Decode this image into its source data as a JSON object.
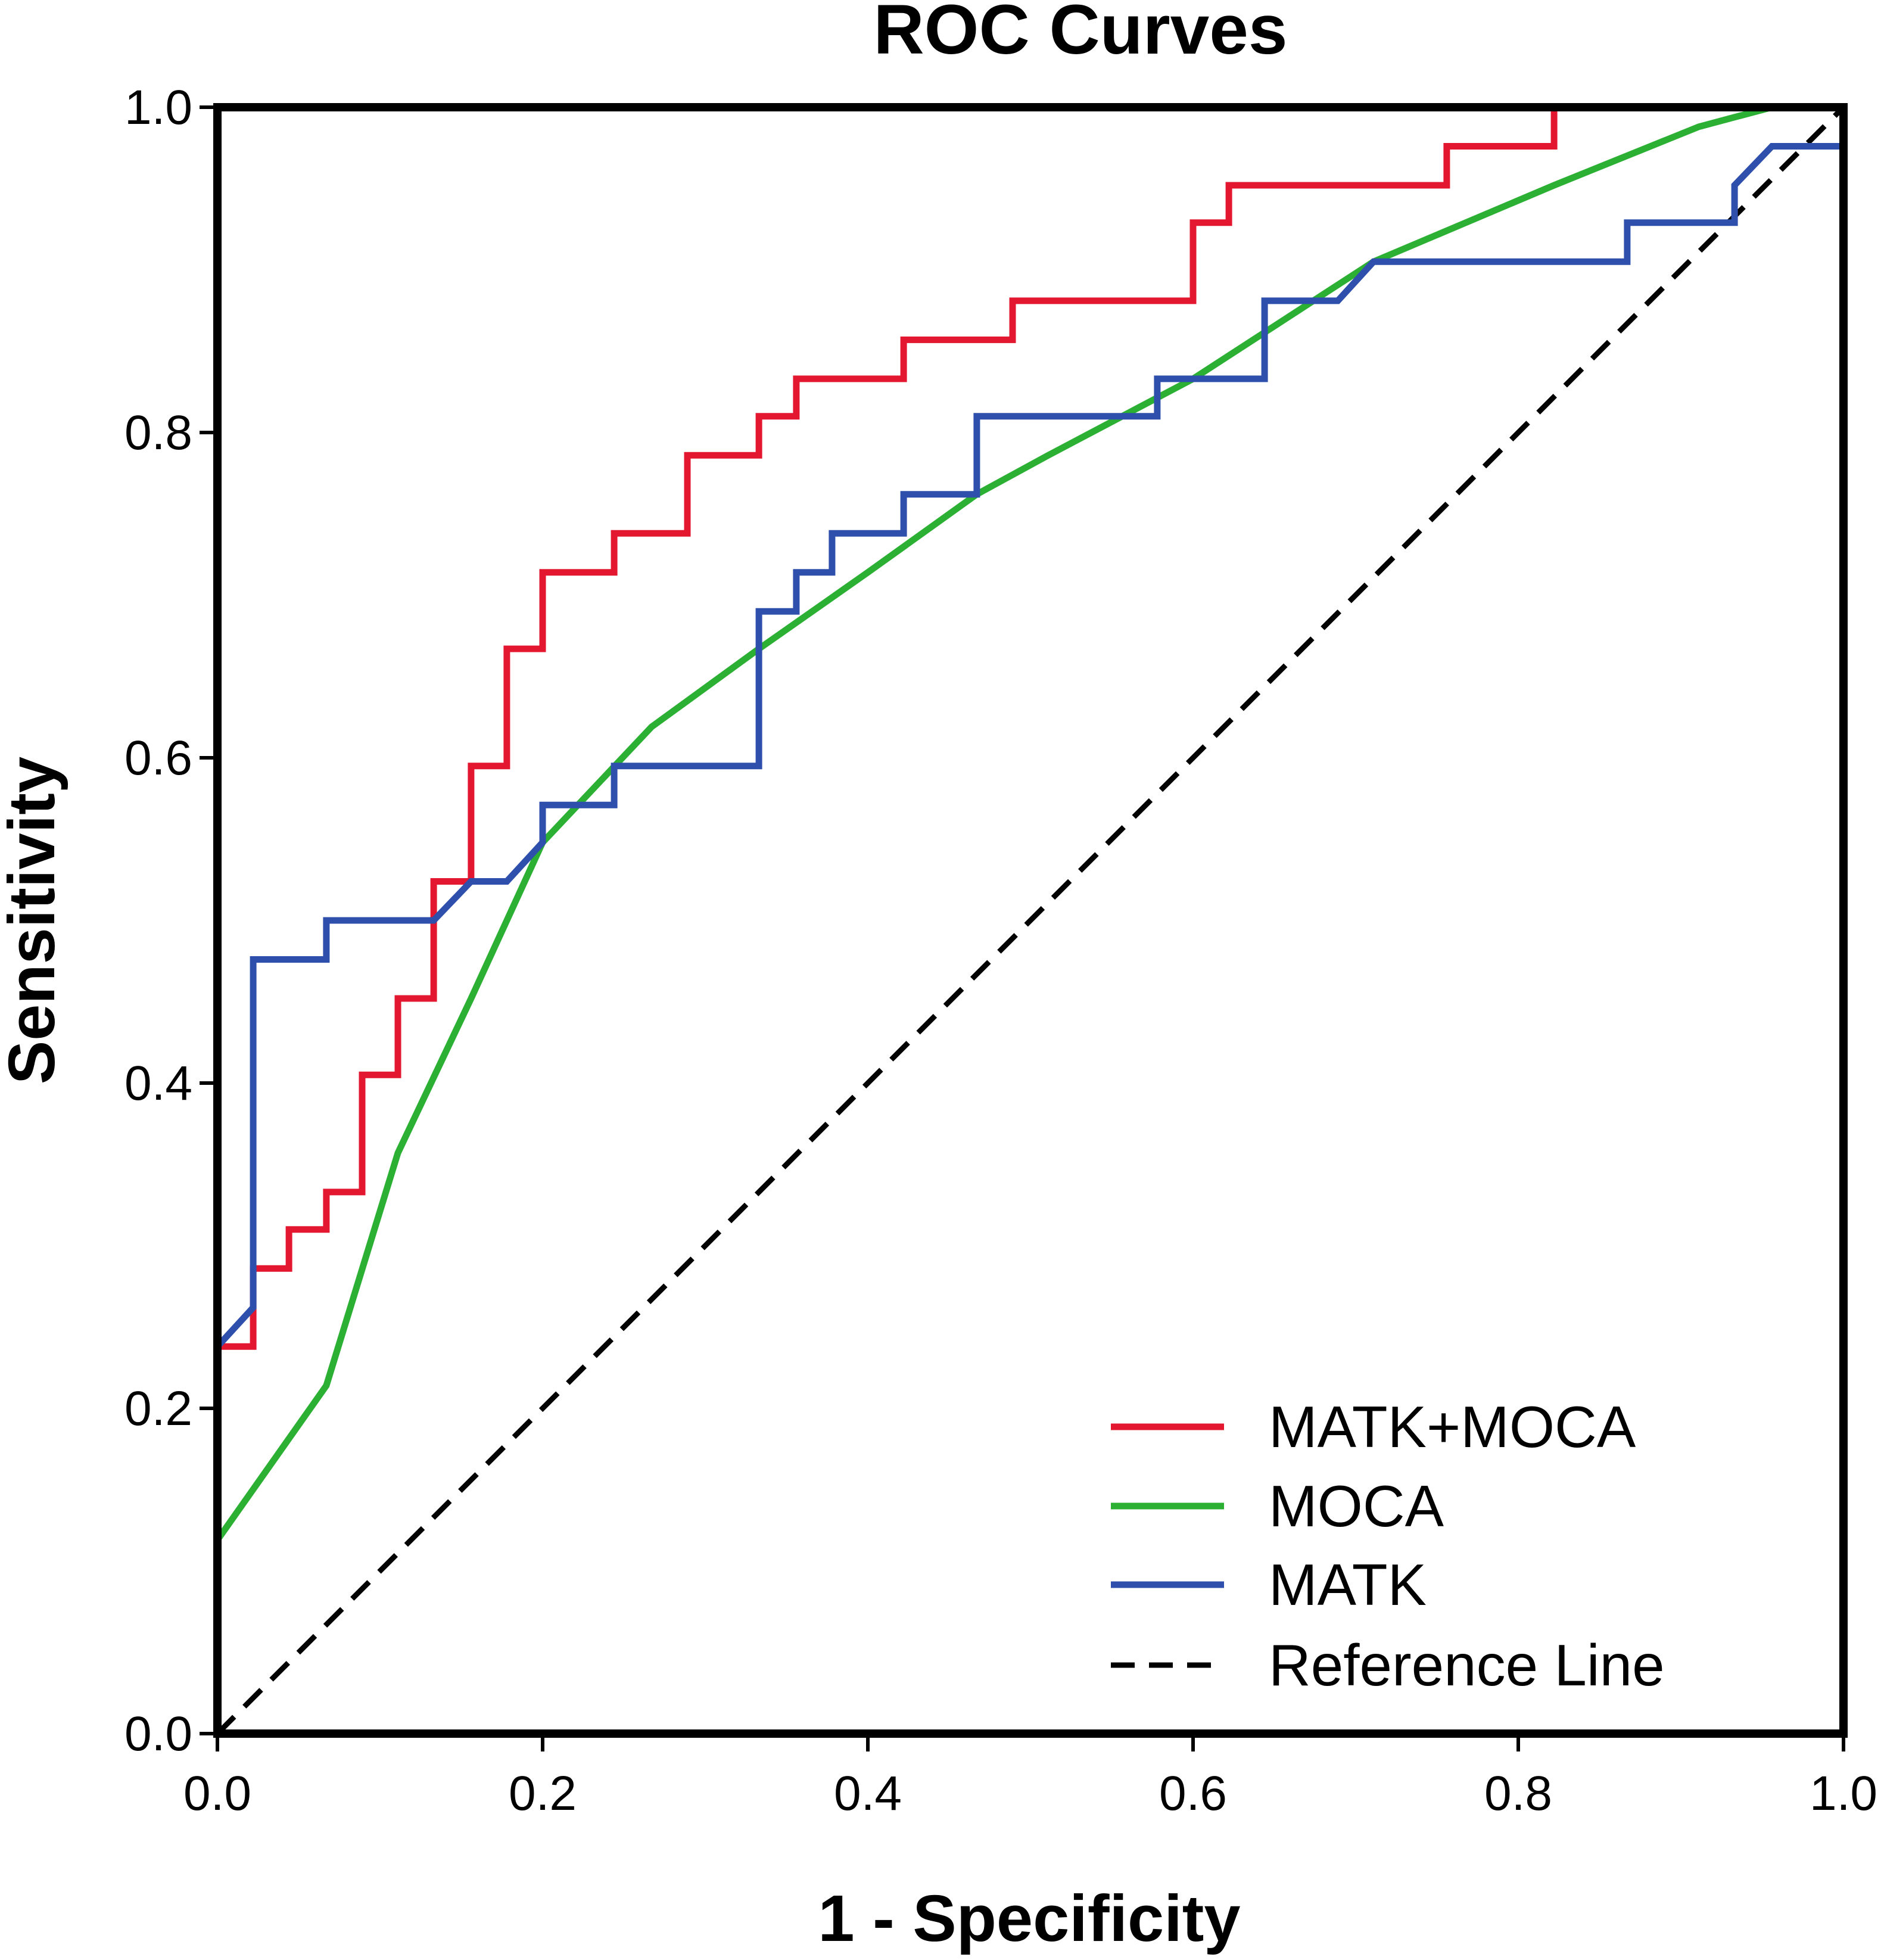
{
  "chart_data": {
    "type": "line",
    "title": "ROC Curves",
    "xlabel": "1 - Specificity",
    "ylabel": "Sensitivity",
    "xlim": [
      0,
      1
    ],
    "ylim": [
      0,
      1
    ],
    "xticks": [
      "0.0",
      "0.2",
      "0.4",
      "0.6",
      "0.8",
      "1.0"
    ],
    "yticks": [
      "0.0",
      "0.2",
      "0.4",
      "0.6",
      "0.8",
      "1.0"
    ],
    "grid": false,
    "legend_position": "bottom-right",
    "series": [
      {
        "name": "MATK+MOCA",
        "color": "#e3172f",
        "style": "solid",
        "x": [
          0.0,
          0.0,
          0.022,
          0.022,
          0.044,
          0.044,
          0.067,
          0.067,
          0.089,
          0.089,
          0.111,
          0.111,
          0.133,
          0.133,
          0.156,
          0.156,
          0.178,
          0.178,
          0.2,
          0.2,
          0.244,
          0.244,
          0.289,
          0.289,
          0.333,
          0.333,
          0.356,
          0.356,
          0.422,
          0.422,
          0.489,
          0.489,
          0.6,
          0.6,
          0.622,
          0.622,
          0.756,
          0.756,
          0.822,
          0.822,
          1.0
        ],
        "y": [
          0.0,
          0.238,
          0.238,
          0.286,
          0.286,
          0.31,
          0.31,
          0.333,
          0.333,
          0.405,
          0.405,
          0.452,
          0.452,
          0.524,
          0.524,
          0.595,
          0.595,
          0.667,
          0.667,
          0.714,
          0.714,
          0.738,
          0.738,
          0.786,
          0.786,
          0.81,
          0.81,
          0.833,
          0.833,
          0.857,
          0.857,
          0.881,
          0.881,
          0.929,
          0.929,
          0.952,
          0.952,
          0.976,
          0.976,
          1.0,
          1.0
        ]
      },
      {
        "name": "MOCA",
        "color": "#2bb034",
        "style": "solid",
        "x": [
          0.0,
          0.067,
          0.111,
          0.156,
          0.2,
          0.267,
          0.333,
          0.4,
          0.467,
          0.511,
          0.6,
          0.711,
          0.822,
          0.911,
          0.956,
          1.0
        ],
        "y": [
          0.119,
          0.214,
          0.357,
          0.452,
          0.548,
          0.619,
          0.667,
          0.714,
          0.762,
          0.786,
          0.833,
          0.905,
          0.952,
          0.988,
          1.0,
          1.0
        ]
      },
      {
        "name": "MATK",
        "color": "#2e4fab",
        "style": "solid",
        "x": [
          0.0,
          0.022,
          0.022,
          0.067,
          0.067,
          0.133,
          0.156,
          0.178,
          0.2,
          0.2,
          0.244,
          0.244,
          0.333,
          0.333,
          0.356,
          0.356,
          0.378,
          0.378,
          0.422,
          0.422,
          0.467,
          0.467,
          0.578,
          0.578,
          0.644,
          0.644,
          0.689,
          0.711,
          0.867,
          0.867,
          0.933,
          0.933,
          0.956,
          0.956,
          1.0
        ],
        "y": [
          0.238,
          0.262,
          0.476,
          0.476,
          0.5,
          0.5,
          0.524,
          0.524,
          0.548,
          0.571,
          0.571,
          0.595,
          0.595,
          0.69,
          0.69,
          0.714,
          0.714,
          0.738,
          0.738,
          0.762,
          0.762,
          0.81,
          0.81,
          0.833,
          0.833,
          0.881,
          0.881,
          0.905,
          0.905,
          0.929,
          0.929,
          0.952,
          0.976,
          0.976,
          0.976
        ]
      },
      {
        "name": "Reference Line",
        "color": "#000000",
        "style": "dashed",
        "x": [
          0.0,
          1.0
        ],
        "y": [
          0.0,
          1.0
        ]
      }
    ]
  }
}
